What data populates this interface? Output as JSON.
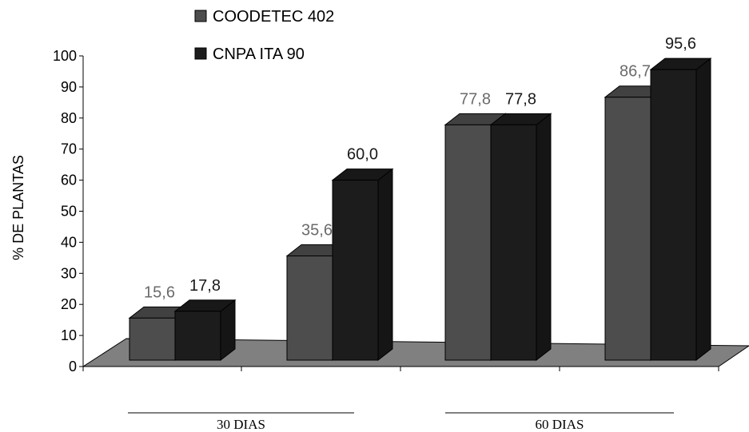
{
  "chart_data": {
    "type": "bar",
    "subtype": "3d-clustered-column",
    "title": "",
    "ylabel": "% DE PLANTAS",
    "xlabel": "",
    "ylim": [
      0,
      100
    ],
    "yticks": [
      0,
      10,
      20,
      30,
      40,
      50,
      60,
      70,
      80,
      90,
      100
    ],
    "grid": false,
    "legend_position": "top-center",
    "categories": [
      "",
      "",
      "",
      ""
    ],
    "groups": [
      {
        "label": "30 DIAS",
        "categories": [
          0,
          1
        ]
      },
      {
        "label": "60 DIAS",
        "categories": [
          2,
          3
        ]
      }
    ],
    "series": [
      {
        "name": "COODETEC 402",
        "values": [
          15.6,
          35.6,
          77.8,
          86.7
        ],
        "labels": [
          "15,6",
          "35,6",
          "77,8",
          "86,7"
        ],
        "color": "#4d4d4d",
        "label_color": "#6b6b6b"
      },
      {
        "name": "CNPA ITA 90",
        "values": [
          17.8,
          60.0,
          77.8,
          95.6
        ],
        "labels": [
          "17,8",
          "60,0",
          "77,8",
          "95,6"
        ],
        "color": "#1c1c1c",
        "label_color": "#1a1a1a"
      }
    ],
    "floor_color": "#808080"
  }
}
